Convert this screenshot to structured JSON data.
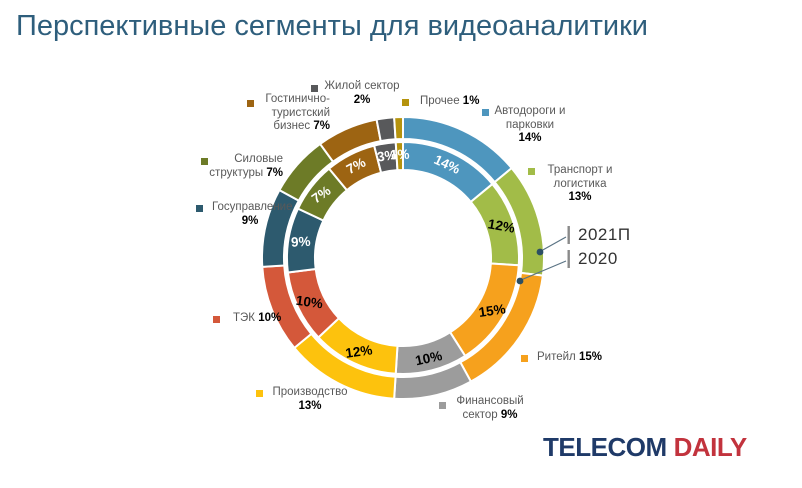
{
  "title": "Перспективные сегменты для видеоаналитики",
  "chart_data": {
    "type": "donut",
    "title": "Перспективные сегменты для видеоаналитики",
    "units": "%",
    "direction": "clockwise",
    "start_angle_deg": 0,
    "legend_position": "right-middle-callout",
    "categories": [
      "Автодороги и парковки",
      "Транспорт и логистика",
      "Ритейл",
      "Финансовый сектор",
      "Производство",
      "ТЭК",
      "Госуправление",
      "Силовые структуры",
      "Гостинично-туристский бизнес",
      "Жилой сектор",
      "Прочее"
    ],
    "series": [
      {
        "name": "2021П",
        "ring": "outer",
        "values": [
          14,
          13,
          15,
          9,
          13,
          10,
          9,
          7,
          7,
          2,
          1
        ]
      },
      {
        "name": "2020",
        "ring": "inner",
        "values": [
          14,
          12,
          15,
          10,
          12,
          10,
          9,
          7,
          7,
          3,
          1
        ]
      }
    ],
    "colors": [
      "#4e96be",
      "#a2bc48",
      "#f6a11d",
      "#9c9c9c",
      "#fdc20d",
      "#d4583a",
      "#2d5a6e",
      "#6d7b27",
      "#9d6412",
      "#58595b",
      "#b5930d"
    ],
    "value_label_colors": [
      "#ffffff",
      "#000000",
      "#000000",
      "#000000",
      "#000000",
      "#000000",
      "#ffffff",
      "#ffffff",
      "#ffffff",
      "#ffffff",
      "#ffffff"
    ]
  },
  "callouts": [
    {
      "id": "roads",
      "lines": [
        "Автодороги и",
        "парковки"
      ],
      "pct": "14%",
      "pct_own_line": false
    },
    {
      "id": "transport",
      "lines": [
        "Транспорт и",
        "логистика"
      ],
      "pct": "13%",
      "pct_own_line": false
    },
    {
      "id": "retail",
      "lines": [
        "Ритейл"
      ],
      "pct": "15%",
      "pct_own_line": false
    },
    {
      "id": "finance",
      "lines": [
        "Финансовый",
        "сектор"
      ],
      "pct": "9%",
      "pct_own_line": false
    },
    {
      "id": "manufacturing",
      "lines": [
        "Производство"
      ],
      "pct": "13%",
      "pct_own_line": true
    },
    {
      "id": "fuel",
      "lines": [
        "ТЭК"
      ],
      "pct": "10%",
      "pct_own_line": false
    },
    {
      "id": "government",
      "lines": [
        "Госуправление"
      ],
      "pct": "9%",
      "pct_own_line": true
    },
    {
      "id": "military",
      "lines": [
        "Силовые",
        "структуры"
      ],
      "pct": "7%",
      "pct_own_line": false
    },
    {
      "id": "hotel",
      "lines": [
        "Гостинично-",
        "туристский",
        "бизнес"
      ],
      "pct": "7%",
      "pct_own_line": false
    },
    {
      "id": "residential",
      "lines": [
        "Жилой сектор"
      ],
      "pct": "2%",
      "pct_own_line": true
    },
    {
      "id": "other",
      "lines": [
        "Прочее"
      ],
      "pct": "1%",
      "pct_own_line": false
    }
  ],
  "annotation": {
    "outer_label": "2021П",
    "inner_label": "2020"
  },
  "logo": {
    "part1": "TELECOM",
    "part2": "DAILY"
  }
}
